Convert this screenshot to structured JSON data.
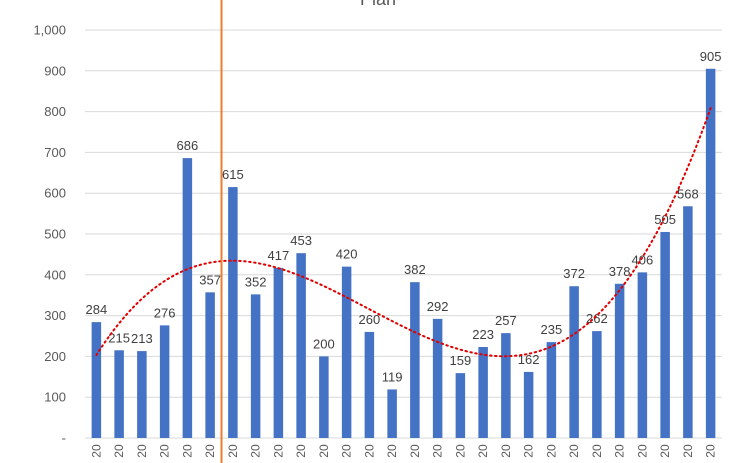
{
  "chart_data": {
    "type": "bar",
    "title": "Plan",
    "xlabel": "",
    "ylabel": "",
    "ylim": [
      0,
      1000
    ],
    "yticks": [
      0,
      100,
      200,
      300,
      400,
      500,
      600,
      700,
      800,
      900,
      1000
    ],
    "ytick_labels": [
      "-",
      "100",
      "200",
      "300",
      "400",
      "500",
      "600",
      "700",
      "800",
      "900",
      "1,000"
    ],
    "grid": true,
    "legend": "none",
    "categories": [
      "20",
      "20",
      "20",
      "20",
      "20",
      "20",
      "20",
      "20",
      "20",
      "20",
      "20",
      "20",
      "20",
      "20",
      "20",
      "20",
      "20",
      "20",
      "20",
      "20",
      "20",
      "20",
      "20",
      "20",
      "20",
      "20",
      "20",
      "20"
    ],
    "values": [
      284,
      215,
      213,
      276,
      686,
      357,
      615,
      352,
      417,
      453,
      200,
      420,
      260,
      119,
      382,
      292,
      159,
      223,
      257,
      162,
      235,
      372,
      262,
      378,
      406,
      505,
      568,
      905
    ],
    "vertical_line_after_index": 5,
    "trendline": {
      "type": "polynomial",
      "style": "dotted"
    },
    "colors": {
      "bar": "#4472C4",
      "trend": "#E00000",
      "marker_line": "#ED7D31",
      "grid": "#D9D9D9"
    }
  }
}
